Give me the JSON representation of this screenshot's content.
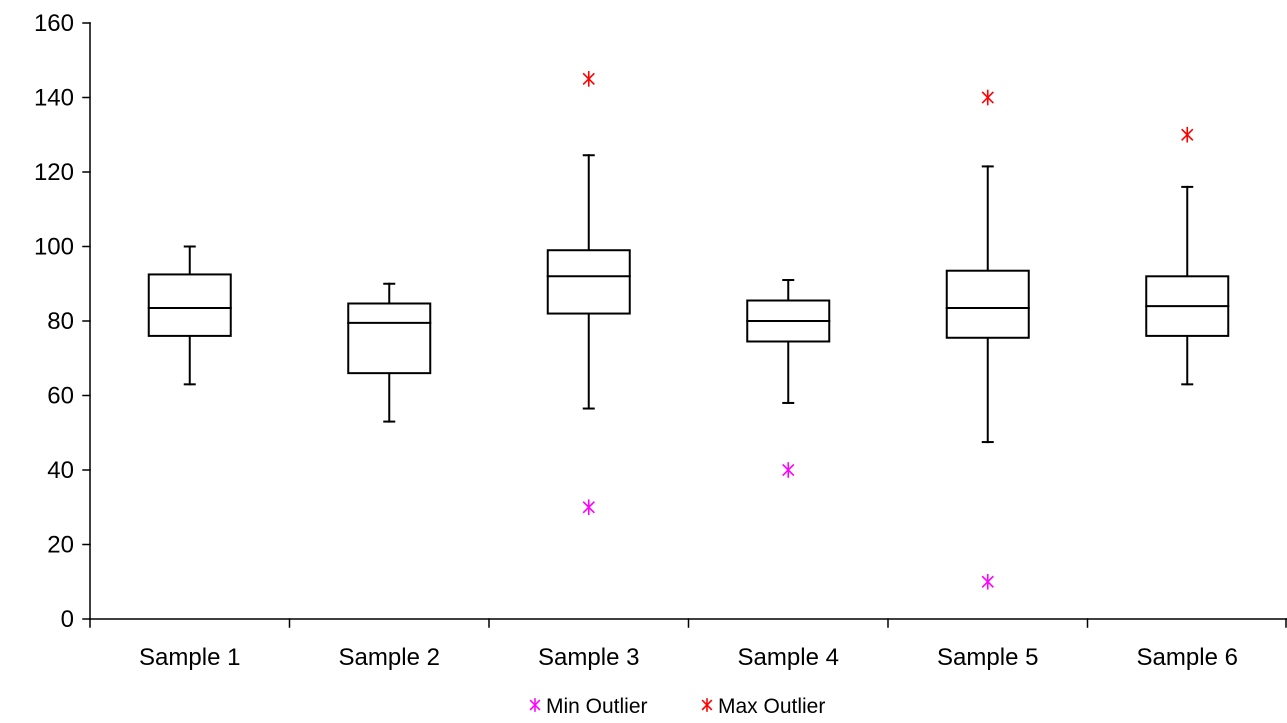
{
  "chart_data": {
    "type": "box",
    "title": "",
    "xlabel": "",
    "ylabel": "",
    "ylim": [
      0,
      160
    ],
    "yticks": [
      0,
      20,
      40,
      60,
      80,
      100,
      120,
      140,
      160
    ],
    "grid": false,
    "legend_placement": "bottom-center",
    "categories": [
      "Sample 1",
      "Sample 2",
      "Sample 3",
      "Sample 4",
      "Sample 5",
      "Sample 6"
    ],
    "boxes": [
      {
        "whisker_low": 63,
        "q1": 76,
        "median": 83.5,
        "q3": 92.5,
        "whisker_high": 100
      },
      {
        "whisker_low": 53,
        "q1": 66,
        "median": 79.5,
        "q3": 84.7,
        "whisker_high": 90
      },
      {
        "whisker_low": 56.5,
        "q1": 82,
        "median": 92,
        "q3": 99,
        "whisker_high": 124.5
      },
      {
        "whisker_low": 58,
        "q1": 74.5,
        "median": 80,
        "q3": 85.5,
        "whisker_high": 91
      },
      {
        "whisker_low": 47.5,
        "q1": 75.5,
        "median": 83.5,
        "q3": 93.5,
        "whisker_high": 121.5
      },
      {
        "whisker_low": 63,
        "q1": 76,
        "median": 84,
        "q3": 92,
        "whisker_high": 116
      }
    ],
    "series": [
      {
        "name": "Min Outlier",
        "color": "#ff00ff",
        "marker": "asterisk",
        "values": [
          null,
          null,
          30,
          40,
          10,
          null
        ]
      },
      {
        "name": "Max Outlier",
        "color": "#ff0000",
        "marker": "asterisk",
        "values": [
          null,
          null,
          145,
          null,
          140,
          130
        ]
      }
    ]
  }
}
